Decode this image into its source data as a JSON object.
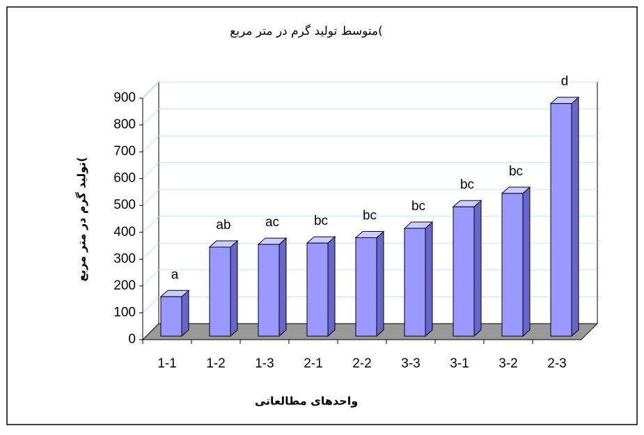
{
  "chart_data": {
    "type": "bar3d",
    "title": "متوسط تولید گرم در متر مربع(",
    "y_label": "تولید گرم در متر مربع(",
    "x_label": "واحدهای مطالعاتی",
    "categories": [
      "1-1",
      "1-2",
      "1-3",
      "2-1",
      "2-2",
      "3-3",
      "3-1",
      "3-2",
      "2-3"
    ],
    "values": [
      160,
      345,
      355,
      360,
      380,
      415,
      495,
      545,
      880
    ],
    "letters": [
      "a",
      "ab",
      "ac",
      "bc",
      "bc",
      "bc",
      "bc",
      "bc",
      "d"
    ],
    "color": "#9999ff",
    "ylim": [
      0,
      900
    ],
    "yticks": [
      0,
      100,
      200,
      300,
      400,
      500,
      600,
      700,
      800,
      900
    ],
    "grid": true
  }
}
